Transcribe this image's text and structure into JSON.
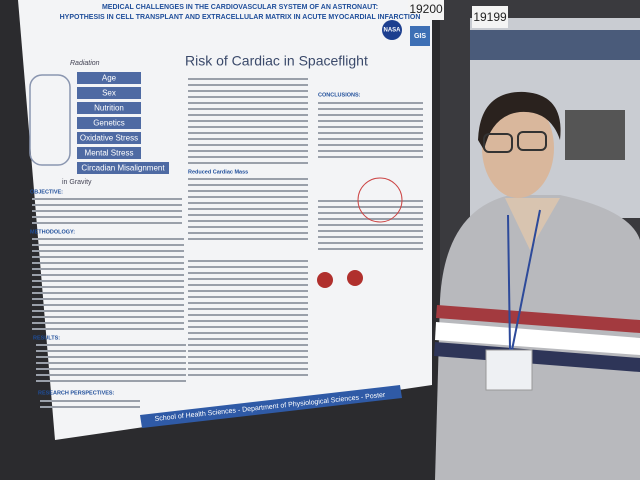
{
  "poster": {
    "number": "19200",
    "title": [
      "MEDICAL CHALLENGES IN THE CARDIOVASCULAR SYSTEM OF AN ASTRONAUT:",
      "HYPOTHESIS IN CELL TRANSPLANT AND EXTRACELLULAR MATRIX IN ACUTE MYOCARDIAL INFARCTION"
    ],
    "logos": [
      "NASA",
      "GIS"
    ],
    "heading": "Risk of Cardiac in Spaceflight",
    "radiation_label": "Radiation",
    "gravity_label": "in Gravity",
    "risk_factors": [
      "Age",
      "Sex",
      "Nutrition",
      "Genetics",
      "Oxidative Stress",
      "Mental Stress",
      "Circadian Misalignment"
    ],
    "sections": [
      "OBJECTIVE:",
      "METHODOLOGY:",
      "RESULTS:",
      "RESEARCH PERSPECTIVES:",
      "CONCLUSIONS:",
      "Reduced Cardiac Mass"
    ],
    "footer": "School of Health Sciences - Department of Physiological Sciences - Poster"
  },
  "neighbor_poster": {
    "number": "19199"
  }
}
